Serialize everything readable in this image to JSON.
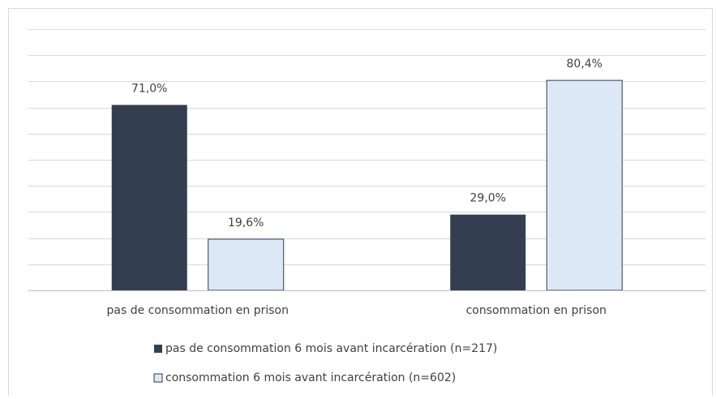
{
  "chart_data": {
    "type": "bar",
    "categories": [
      "pas de consommation en prison",
      "consommation en prison"
    ],
    "series": [
      {
        "name": "pas de consommation 6 mois avant incarcération (n=217)",
        "color": "#333f50",
        "values": [
          71.0,
          29.0
        ],
        "value_labels": [
          "71,0%",
          "29,0%"
        ]
      },
      {
        "name": "consommation 6 mois avant incarcération (n=602)",
        "color": "#dce8f6",
        "values": [
          19.6,
          80.4
        ],
        "value_labels": [
          "19,6%",
          "80,4%"
        ]
      }
    ],
    "ylim": [
      0,
      100
    ],
    "yticks": [
      0,
      10,
      20,
      30,
      40,
      50,
      60,
      70,
      80,
      90,
      100
    ],
    "grid": true,
    "legend": "bottom"
  }
}
